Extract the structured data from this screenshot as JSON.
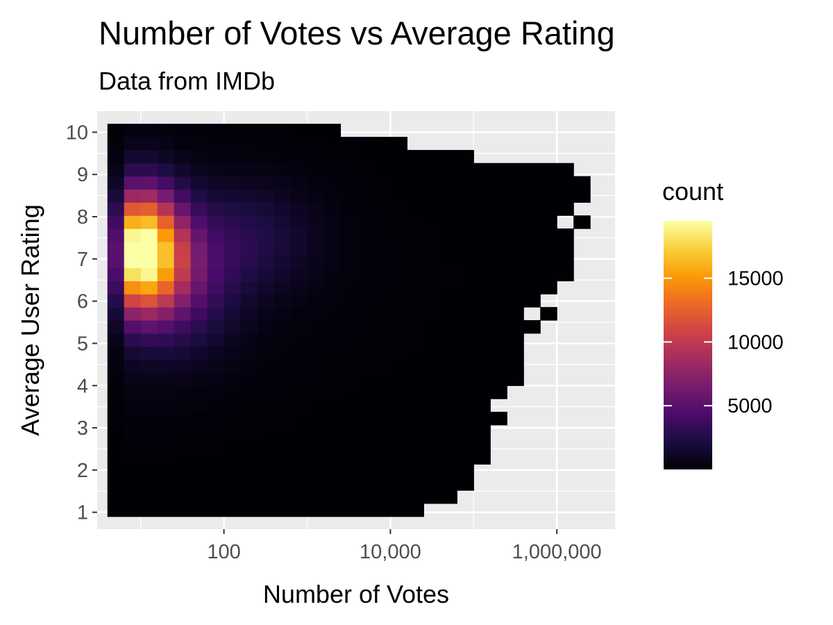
{
  "chart_data": {
    "type": "heatmap",
    "title": "Number of Votes vs Average Rating",
    "subtitle": "Data from IMDb",
    "xlabel": "Number of Votes",
    "ylabel": "Average User Rating",
    "x_scale": "log10",
    "xlim": [
      3,
      5000000
    ],
    "ylim": [
      0.6,
      10.5
    ],
    "x_ticks": [
      100,
      10000,
      1000000
    ],
    "x_tick_labels": [
      "100",
      "10,000",
      "1,000,000"
    ],
    "y_ticks": [
      1,
      2,
      3,
      4,
      5,
      6,
      7,
      8,
      9,
      10
    ],
    "y_tick_labels": [
      "1",
      "2",
      "3",
      "4",
      "5",
      "6",
      "7",
      "8",
      "9",
      "10"
    ],
    "grid": true,
    "fill_label": "count",
    "fill_range": [
      1,
      19500
    ],
    "legend": {
      "title": "count",
      "position": "right",
      "breaks": [
        5000,
        10000,
        15000
      ],
      "labels": [
        "5000",
        "10000",
        "15000"
      ]
    },
    "colormap": "inferno",
    "colormap_stops": [
      "#000004",
      "#1b0c41",
      "#4a0c6b",
      "#781c6d",
      "#a52c60",
      "#cf4446",
      "#ed6925",
      "#fb9b06",
      "#f7d13d",
      "#fcffa4"
    ],
    "bins": {
      "n_x": 30,
      "n_y": 30,
      "log10_x_range": [
        0.6,
        6.6
      ],
      "y_range": [
        0.9,
        10.2
      ]
    },
    "density_peaks": [
      {
        "votes": 10,
        "rating": 7.2,
        "count": 19500
      },
      {
        "votes": 30,
        "rating": 6.5,
        "count": 11000
      },
      {
        "votes": 200,
        "rating": 7.5,
        "count": 6000
      }
    ],
    "extent_by_rating": [
      {
        "rating": 1.0,
        "max_votes": 15000
      },
      {
        "rating": 1.5,
        "max_votes": 60000
      },
      {
        "rating": 2.0,
        "max_votes": 100000
      },
      {
        "rating": 3.0,
        "max_votes": 150000
      },
      {
        "rating": 4.0,
        "max_votes": 300000
      },
      {
        "rating": 5.0,
        "max_votes": 350000
      },
      {
        "rating": 6.0,
        "max_votes": 900000
      },
      {
        "rating": 7.0,
        "max_votes": 1200000
      },
      {
        "rating": 8.0,
        "max_votes": 1800000
      },
      {
        "rating": 9.0,
        "max_votes": 2600000
      },
      {
        "rating": 10.0,
        "max_votes": 1800
      }
    ]
  }
}
